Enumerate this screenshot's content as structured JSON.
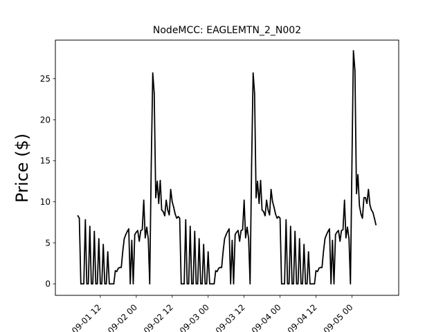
{
  "chart_data": {
    "type": "line",
    "title": "NodeMCC: EAGLEMTN_2_N002",
    "xlabel": "",
    "ylabel": "Price ($)",
    "grid": false,
    "legend": "none",
    "line_color": "#000000",
    "x_unit": "hours",
    "x_start": "09-01 00",
    "xlim": [
      -3.0,
      111.6
    ],
    "ylim": [
      -1.4,
      29.7
    ],
    "yticks": [
      0,
      5,
      10,
      15,
      20,
      25
    ],
    "xtick_labels": [
      {
        "x": 12,
        "label": "09-01 12"
      },
      {
        "x": 24,
        "label": "09-02 00"
      },
      {
        "x": 36,
        "label": "09-02 12"
      },
      {
        "x": 48,
        "label": "09-03 00"
      },
      {
        "x": 60,
        "label": "09-03 12"
      },
      {
        "x": 72,
        "label": "09-04 00"
      },
      {
        "x": 84,
        "label": "09-04 12"
      },
      {
        "x": 96,
        "label": "09-05 00"
      }
    ],
    "series": [
      {
        "name": "",
        "values": [
          [
            4.5,
            8.3
          ],
          [
            5.0,
            8.0
          ],
          [
            5.5,
            0.0
          ],
          [
            6.5,
            0.0
          ],
          [
            7.0,
            7.8
          ],
          [
            7.5,
            0.0
          ],
          [
            8.0,
            0.0
          ],
          [
            8.5,
            7.0
          ],
          [
            9.0,
            0.0
          ],
          [
            9.5,
            0.0
          ],
          [
            10.0,
            6.4
          ],
          [
            10.5,
            0.0
          ],
          [
            11.0,
            0.0
          ],
          [
            11.5,
            5.5
          ],
          [
            12.0,
            0.0
          ],
          [
            12.5,
            0.0
          ],
          [
            13.0,
            4.8
          ],
          [
            13.5,
            0.0
          ],
          [
            14.0,
            0.0
          ],
          [
            14.5,
            3.9
          ],
          [
            15.0,
            0.0
          ],
          [
            15.5,
            0.0
          ],
          [
            16.0,
            0.0
          ],
          [
            16.5,
            0.0
          ],
          [
            17.0,
            1.6
          ],
          [
            17.5,
            1.5
          ],
          [
            18.0,
            1.9
          ],
          [
            18.5,
            2.0
          ],
          [
            19.0,
            2.0
          ],
          [
            19.5,
            4.0
          ],
          [
            20.0,
            5.5
          ],
          [
            20.5,
            6.0
          ],
          [
            21.0,
            6.4
          ],
          [
            21.5,
            6.7
          ],
          [
            22.0,
            0.0
          ],
          [
            22.5,
            5.3
          ],
          [
            23.0,
            0.0
          ],
          [
            23.5,
            6.0
          ],
          [
            24.0,
            6.3
          ],
          [
            24.5,
            6.5
          ],
          [
            25.0,
            5.2
          ],
          [
            25.5,
            6.5
          ],
          [
            26.0,
            6.6
          ],
          [
            26.5,
            10.2
          ],
          [
            27.0,
            5.6
          ],
          [
            27.5,
            6.9
          ],
          [
            28.0,
            5.5
          ],
          [
            28.5,
            0.0
          ],
          [
            29.0,
            14.5
          ],
          [
            29.5,
            25.7
          ],
          [
            30.0,
            23.2
          ],
          [
            30.5,
            10.5
          ],
          [
            31.0,
            12.5
          ],
          [
            31.5,
            9.8
          ],
          [
            32.0,
            12.6
          ],
          [
            32.5,
            9.0
          ],
          [
            33.0,
            8.8
          ],
          [
            33.5,
            8.3
          ],
          [
            34.0,
            10.2
          ],
          [
            34.5,
            9.0
          ],
          [
            35.0,
            8.4
          ],
          [
            35.5,
            11.5
          ],
          [
            36.0,
            10.0
          ],
          [
            36.5,
            9.3
          ],
          [
            37.0,
            8.5
          ],
          [
            37.5,
            8.0
          ],
          [
            38.0,
            8.2
          ],
          [
            38.5,
            8.0
          ],
          [
            39.0,
            0.0
          ],
          [
            40.0,
            0.0
          ],
          [
            40.5,
            7.8
          ],
          [
            41.0,
            0.0
          ],
          [
            41.5,
            0.0
          ],
          [
            42.0,
            7.0
          ],
          [
            42.5,
            0.0
          ],
          [
            43.0,
            0.0
          ],
          [
            43.5,
            6.4
          ],
          [
            44.0,
            0.0
          ],
          [
            44.5,
            0.0
          ],
          [
            45.0,
            5.5
          ],
          [
            45.5,
            0.0
          ],
          [
            46.0,
            0.0
          ],
          [
            46.5,
            4.8
          ],
          [
            47.0,
            0.0
          ],
          [
            47.5,
            0.0
          ],
          [
            48.0,
            3.9
          ],
          [
            48.5,
            0.0
          ],
          [
            49.0,
            0.0
          ],
          [
            49.5,
            0.0
          ],
          [
            50.0,
            0.0
          ],
          [
            50.5,
            1.6
          ],
          [
            51.0,
            1.5
          ],
          [
            51.5,
            1.9
          ],
          [
            52.0,
            2.0
          ],
          [
            52.5,
            2.0
          ],
          [
            53.0,
            4.0
          ],
          [
            53.5,
            5.5
          ],
          [
            54.0,
            6.0
          ],
          [
            54.5,
            6.4
          ],
          [
            55.0,
            6.7
          ],
          [
            55.5,
            0.0
          ],
          [
            56.0,
            5.3
          ],
          [
            56.5,
            0.0
          ],
          [
            57.0,
            6.0
          ],
          [
            57.5,
            6.3
          ],
          [
            58.0,
            6.5
          ],
          [
            58.5,
            5.2
          ],
          [
            59.0,
            6.5
          ],
          [
            59.5,
            6.6
          ],
          [
            60.0,
            10.2
          ],
          [
            60.5,
            5.6
          ],
          [
            61.0,
            6.9
          ],
          [
            61.5,
            5.5
          ],
          [
            62.0,
            0.0
          ],
          [
            62.5,
            14.5
          ],
          [
            63.0,
            25.7
          ],
          [
            63.5,
            23.2
          ],
          [
            64.0,
            10.5
          ],
          [
            64.5,
            12.5
          ],
          [
            65.0,
            9.8
          ],
          [
            65.5,
            12.6
          ],
          [
            66.0,
            9.0
          ],
          [
            66.5,
            8.8
          ],
          [
            67.0,
            8.3
          ],
          [
            67.5,
            10.2
          ],
          [
            68.0,
            9.0
          ],
          [
            68.5,
            8.4
          ],
          [
            69.0,
            11.5
          ],
          [
            69.5,
            10.0
          ],
          [
            70.0,
            9.3
          ],
          [
            70.5,
            8.5
          ],
          [
            71.0,
            8.0
          ],
          [
            71.5,
            8.2
          ],
          [
            72.0,
            8.0
          ],
          [
            72.5,
            0.0
          ],
          [
            73.5,
            0.0
          ],
          [
            74.0,
            7.8
          ],
          [
            74.5,
            0.0
          ],
          [
            75.0,
            0.0
          ],
          [
            75.5,
            7.0
          ],
          [
            76.0,
            0.0
          ],
          [
            76.5,
            0.0
          ],
          [
            77.0,
            6.4
          ],
          [
            77.5,
            0.0
          ],
          [
            78.0,
            0.0
          ],
          [
            78.5,
            5.5
          ],
          [
            79.0,
            0.0
          ],
          [
            79.5,
            0.0
          ],
          [
            80.0,
            4.8
          ],
          [
            80.5,
            0.0
          ],
          [
            81.0,
            0.0
          ],
          [
            81.5,
            3.9
          ],
          [
            82.0,
            0.0
          ],
          [
            82.5,
            0.0
          ],
          [
            83.0,
            0.0
          ],
          [
            83.5,
            0.0
          ],
          [
            84.0,
            1.6
          ],
          [
            84.5,
            1.5
          ],
          [
            85.0,
            1.9
          ],
          [
            85.5,
            2.0
          ],
          [
            86.0,
            2.0
          ],
          [
            86.5,
            4.0
          ],
          [
            87.0,
            5.5
          ],
          [
            87.5,
            6.0
          ],
          [
            88.0,
            6.4
          ],
          [
            88.5,
            6.7
          ],
          [
            89.0,
            0.0
          ],
          [
            89.5,
            5.3
          ],
          [
            90.0,
            0.0
          ],
          [
            90.5,
            6.0
          ],
          [
            91.0,
            6.3
          ],
          [
            91.5,
            6.5
          ],
          [
            92.0,
            5.2
          ],
          [
            92.5,
            6.5
          ],
          [
            93.0,
            6.6
          ],
          [
            93.5,
            10.2
          ],
          [
            94.0,
            5.6
          ],
          [
            94.5,
            6.9
          ],
          [
            95.0,
            5.5
          ],
          [
            95.5,
            0.0
          ],
          [
            96.0,
            15.0
          ],
          [
            96.5,
            28.4
          ],
          [
            97.0,
            26.0
          ],
          [
            97.5,
            11.0
          ],
          [
            98.0,
            13.3
          ],
          [
            98.5,
            9.5
          ],
          [
            99.0,
            8.5
          ],
          [
            99.5,
            8.0
          ],
          [
            100.0,
            10.5
          ],
          [
            100.5,
            10.5
          ],
          [
            101.0,
            9.8
          ],
          [
            101.5,
            11.5
          ],
          [
            102.0,
            9.6
          ],
          [
            102.5,
            9.0
          ],
          [
            103.0,
            8.7
          ],
          [
            103.5,
            8.0
          ],
          [
            104.0,
            7.2
          ]
        ]
      }
    ]
  }
}
